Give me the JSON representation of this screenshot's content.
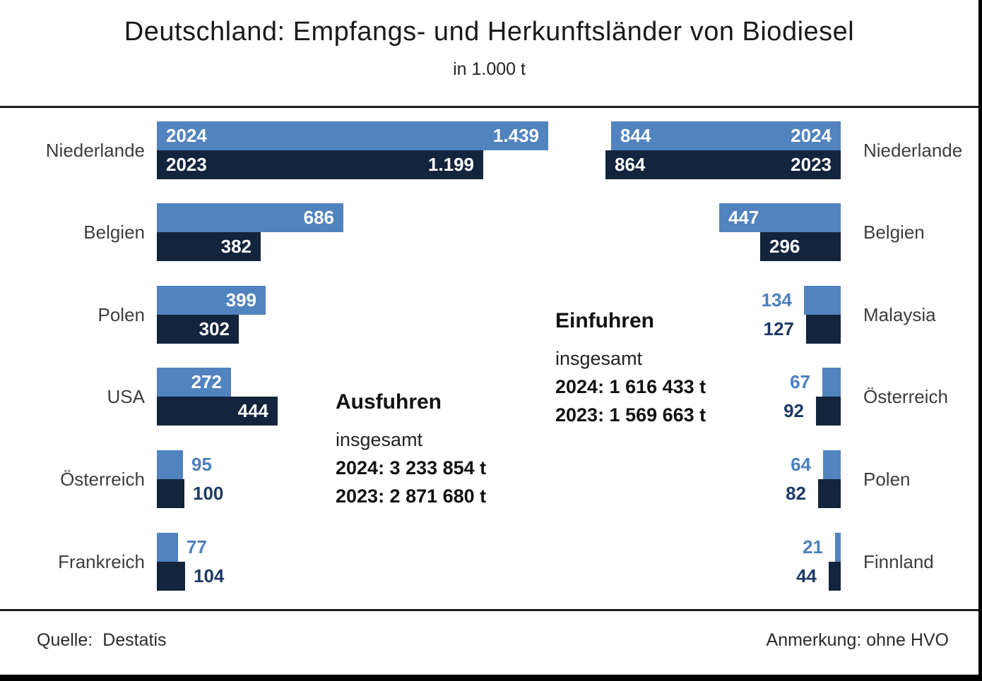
{
  "title": "Deutschland: Empfangs- und Herkunftsländer von Biodiesel",
  "subtitle": "in 1.000 t",
  "footer": {
    "source_label": "Quelle:",
    "source_value": "Destatis",
    "note": "Anmerkung: ohne HVO"
  },
  "colors": {
    "bar_2024": "#5183bf",
    "bar_2023": "#13243d",
    "text_2024": "#4b80bd",
    "text_2023": "#1d3a63"
  },
  "chart_data": [
    {
      "id": "exports",
      "type": "bar",
      "side": "left",
      "unit": "1.000 t",
      "year_label_row": 0,
      "categories": [
        "Niederlande",
        "Belgien",
        "Polen",
        "USA",
        "Österreich",
        "Frankreich"
      ],
      "series": [
        {
          "name": "2024",
          "values": [
            1439,
            686,
            399,
            272,
            95,
            77
          ],
          "labels": [
            "1.439",
            "686",
            "399",
            "272",
            "95",
            "77"
          ]
        },
        {
          "name": "2023",
          "values": [
            1199,
            382,
            302,
            444,
            100,
            104
          ],
          "labels": [
            "1.199",
            "382",
            "302",
            "444",
            "100",
            "104"
          ]
        }
      ],
      "summary": {
        "heading": "Ausfuhren",
        "subheading": "insgesamt",
        "total_lines": [
          "2024: 3 233 854 t",
          "2023: 2 871 680 t"
        ]
      }
    },
    {
      "id": "imports",
      "type": "bar",
      "side": "right",
      "unit": "1.000 t",
      "year_label_row": 0,
      "categories": [
        "Niederlande",
        "Belgien",
        "Malaysia",
        "Österreich",
        "Polen",
        "Finnland"
      ],
      "series": [
        {
          "name": "2024",
          "values": [
            844,
            447,
            134,
            67,
            64,
            21
          ],
          "labels": [
            "844",
            "447",
            "134",
            "67",
            "64",
            "21"
          ]
        },
        {
          "name": "2023",
          "values": [
            864,
            296,
            127,
            92,
            82,
            44
          ],
          "labels": [
            "864",
            "296",
            "127",
            "92",
            "82",
            "44"
          ]
        }
      ],
      "summary": {
        "heading": "Einfuhren",
        "subheading": "insgesamt",
        "total_lines": [
          "2024: 1 616 433 t",
          "2023: 1 569 663 t"
        ]
      }
    }
  ]
}
